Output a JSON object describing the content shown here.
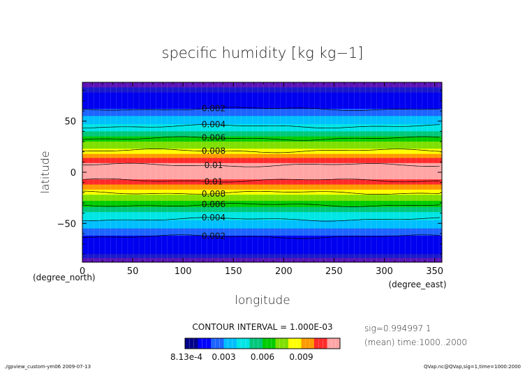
{
  "chart_data": {
    "type": "heatmap",
    "title": "specific humidity [kg kg−1]",
    "xlabel": "longitude",
    "ylabel": "latitude",
    "x_unit": "(degree_east)",
    "y_unit": "(degree_north)",
    "xlim": [
      0,
      357.2
    ],
    "ylim": [
      -88,
      88
    ],
    "x_ticks": [
      0,
      50,
      100,
      150,
      200,
      250,
      300,
      350
    ],
    "y_ticks": [
      50,
      0,
      -50
    ],
    "contour_interval_text": "CONTOUR INTERVAL = 1.000E-03",
    "contour_interval": 0.001,
    "info_lines": [
      "sig=0.994997 1",
      "(mean) time:1000..2000"
    ],
    "footer_left": "./gpview_custom-ym06  2009-07-13",
    "footer_right": "QVap.nc@QVap,sig=1,time=1000:2000",
    "colorbar": {
      "min_label": "8.13e-4",
      "tick_labels": [
        {
          "text": "0.003",
          "value": 0.003
        },
        {
          "text": "0.006",
          "value": 0.006
        },
        {
          "text": "0.009",
          "value": 0.009
        }
      ],
      "levels": [
        0.000813,
        0.001,
        0.002,
        0.003,
        0.004,
        0.005,
        0.006,
        0.007,
        0.008,
        0.009,
        0.01,
        0.011
      ],
      "colors": [
        "#00008b",
        "#0000ff",
        "#1e64ff",
        "#00bfff",
        "#00e5e5",
        "#00c87a",
        "#00cc00",
        "#7fdf00",
        "#ffff00",
        "#ff9a00",
        "#ff2a2a",
        "#ffa5a5"
      ]
    },
    "bands": [
      {
        "lat_from": 88,
        "lat_to": 83,
        "color": "#5b13b7"
      },
      {
        "lat_from": 83,
        "lat_to": 78,
        "color": "#1a1acc"
      },
      {
        "lat_from": 78,
        "lat_to": 62,
        "color": "#0000f0"
      },
      {
        "lat_from": 62,
        "lat_to": 55,
        "color": "#1e64ff"
      },
      {
        "lat_from": 55,
        "lat_to": 47,
        "color": "#00bfff"
      },
      {
        "lat_from": 47,
        "lat_to": 40,
        "color": "#00e5e5"
      },
      {
        "lat_from": 40,
        "lat_to": 35,
        "color": "#00c87a"
      },
      {
        "lat_from": 35,
        "lat_to": 30,
        "color": "#00cc00"
      },
      {
        "lat_from": 30,
        "lat_to": 23,
        "color": "#7fdf00"
      },
      {
        "lat_from": 23,
        "lat_to": 18,
        "color": "#ffff00"
      },
      {
        "lat_from": 18,
        "lat_to": 14,
        "color": "#ff9a00"
      },
      {
        "lat_from": 14,
        "lat_to": 9,
        "color": "#ff2a2a"
      },
      {
        "lat_from": 9,
        "lat_to": -7,
        "color": "#ffa5a5"
      },
      {
        "lat_from": -7,
        "lat_to": -12,
        "color": "#ff2a2a"
      },
      {
        "lat_from": -12,
        "lat_to": -17,
        "color": "#ff9a00"
      },
      {
        "lat_from": -17,
        "lat_to": -22,
        "color": "#ffff00"
      },
      {
        "lat_from": -22,
        "lat_to": -28,
        "color": "#7fdf00"
      },
      {
        "lat_from": -28,
        "lat_to": -34,
        "color": "#00cc00"
      },
      {
        "lat_from": -34,
        "lat_to": -39,
        "color": "#00c87a"
      },
      {
        "lat_from": -39,
        "lat_to": -47,
        "color": "#00e5e5"
      },
      {
        "lat_from": -47,
        "lat_to": -55,
        "color": "#00bfff"
      },
      {
        "lat_from": -55,
        "lat_to": -62,
        "color": "#1e64ff"
      },
      {
        "lat_from": -62,
        "lat_to": -80,
        "color": "#0000f0"
      },
      {
        "lat_from": -80,
        "lat_to": -84,
        "color": "#1a1acc"
      },
      {
        "lat_from": -84,
        "lat_to": -88,
        "color": "#5b13b7"
      }
    ],
    "contours": [
      {
        "level": 0.002,
        "lat": 62,
        "label": "0.002"
      },
      {
        "level": 0.004,
        "lat": 45,
        "label": "0.004"
      },
      {
        "level": 0.006,
        "lat": 33,
        "label": "0.006"
      },
      {
        "level": 0.008,
        "lat": 21,
        "label": "0.008"
      },
      {
        "level": 0.01,
        "lat": 7,
        "label": "0.01"
      },
      {
        "level": 0.01,
        "lat": -8,
        "label": "0.01"
      },
      {
        "level": 0.008,
        "lat": -20,
        "label": "0.008"
      },
      {
        "level": 0.006,
        "lat": -32,
        "label": "0.006"
      },
      {
        "level": 0.004,
        "lat": -46,
        "label": "0.004"
      },
      {
        "level": 0.002,
        "lat": -63,
        "label": "0.002"
      }
    ]
  }
}
